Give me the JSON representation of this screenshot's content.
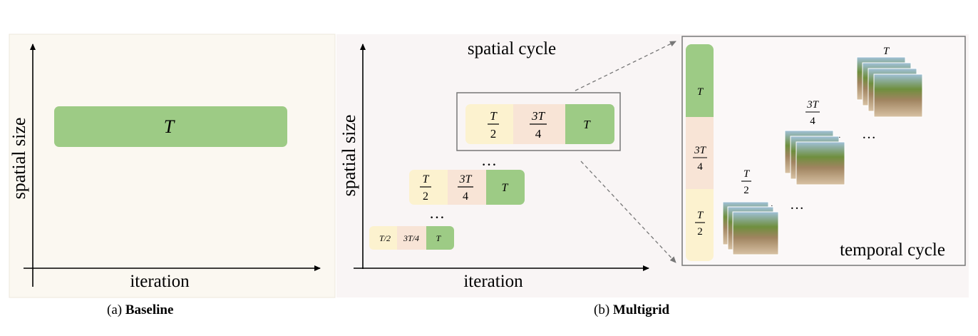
{
  "panel_a": {
    "axis_y_label": "spatial size",
    "axis_x_label": "iteration",
    "bar_label": "T",
    "caption_prefix": "(a)",
    "caption_title": "Baseline"
  },
  "panel_b": {
    "axis_y_label": "spatial size",
    "axis_x_label": "iteration",
    "spatial_cycle_label": "spatial cycle",
    "temporal_cycle_label": "temporal cycle",
    "bars": [
      {
        "seg1": "T",
        "seg1_den": "2",
        "seg2": "3T",
        "seg2_den": "4",
        "seg3": "T"
      },
      {
        "seg1": "T",
        "seg1_den": "2",
        "seg2": "3T",
        "seg2_den": "4",
        "seg3": "T"
      },
      {
        "seg1_inline": "T/2",
        "seg2_inline": "3T/4",
        "seg3": "T"
      }
    ],
    "ellipsis": "…",
    "vertical_bar": {
      "top": "T",
      "mid_num": "3T",
      "mid_den": "4",
      "bot_num": "T",
      "bot_den": "2"
    },
    "stacks": [
      {
        "num": "T",
        "den": "2"
      },
      {
        "num": "3T",
        "den": "4"
      },
      {
        "num": "T",
        "den": ""
      }
    ],
    "caption_prefix": "(b)",
    "caption_title": "Multigrid"
  },
  "colors": {
    "green": "#9dcb85",
    "peach": "#f8e4d6",
    "yellow": "#fcf2cf",
    "panel_a_bg": "#fbf8f1",
    "panel_b_bg": "#f9f5f5"
  }
}
